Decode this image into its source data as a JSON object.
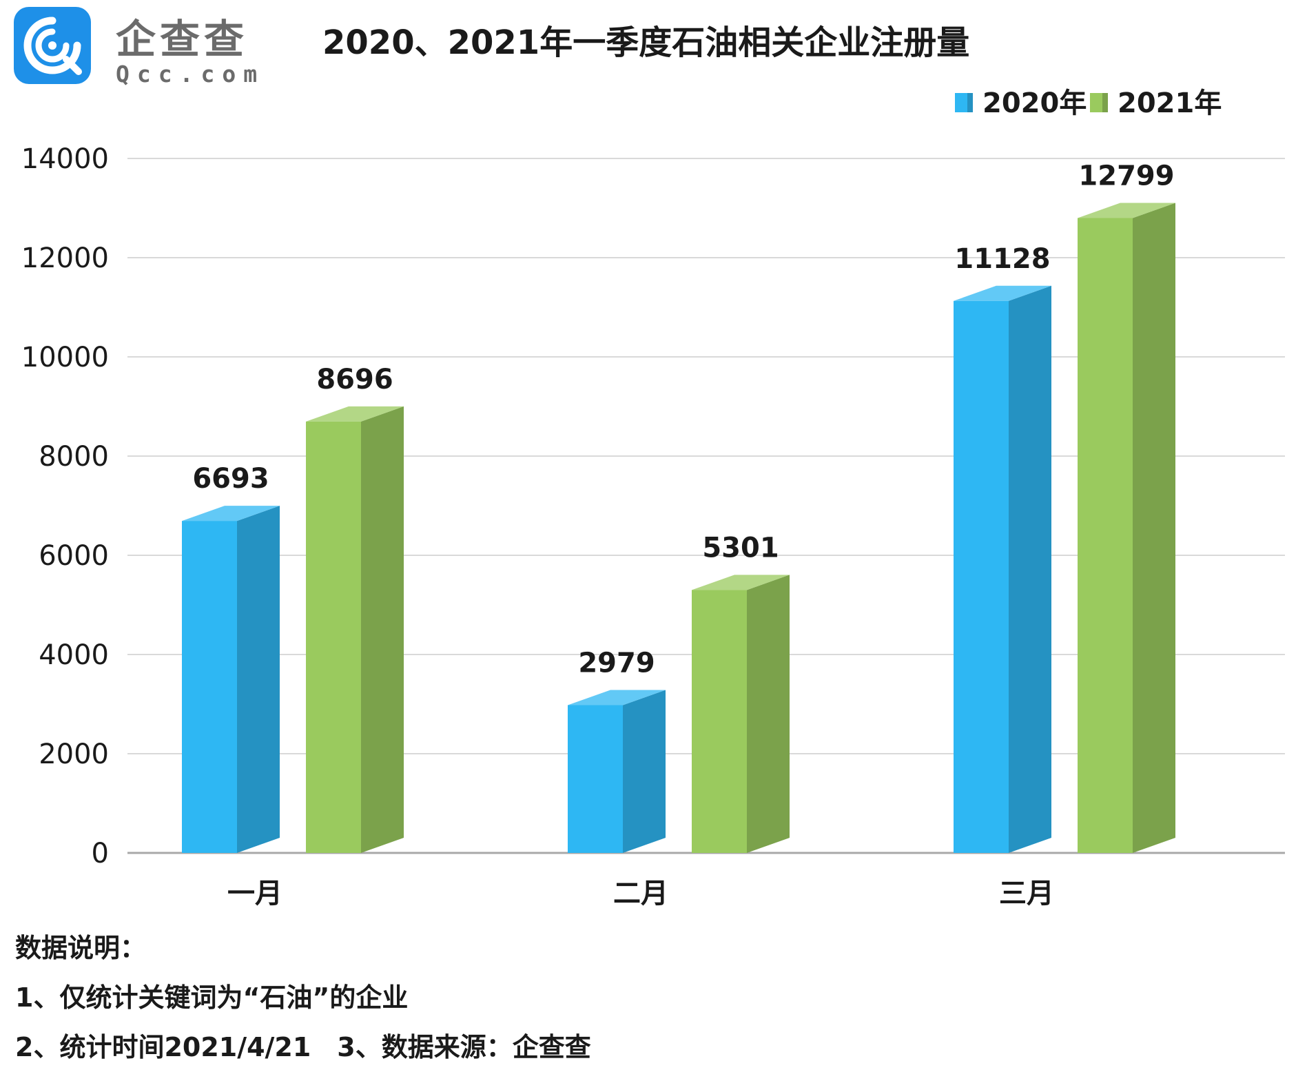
{
  "brand": {
    "name_cn": "企查查",
    "name_en": "Qcc.com"
  },
  "chart_data": {
    "type": "bar",
    "title": "2020、2021年一季度石油相关企业注册量",
    "categories": [
      "一月",
      "二月",
      "三月"
    ],
    "series": [
      {
        "name": "2020年",
        "values": [
          6693,
          2979,
          11128
        ],
        "color": "#2EB7F3"
      },
      {
        "name": "2021年",
        "values": [
          8696,
          5301,
          12799
        ],
        "color": "#9ACA5E"
      }
    ],
    "ylim": [
      0,
      14000
    ],
    "yticks": [
      0,
      2000,
      4000,
      6000,
      8000,
      10000,
      12000,
      14000
    ],
    "grid": true,
    "legend": "top-right",
    "bar_style": "3d"
  },
  "notes": {
    "heading": "数据说明：",
    "line1": "1、仅统计关键词为“石油”的企业",
    "line2": "2、统计时间2021/4/21　3、数据来源：企查查"
  }
}
